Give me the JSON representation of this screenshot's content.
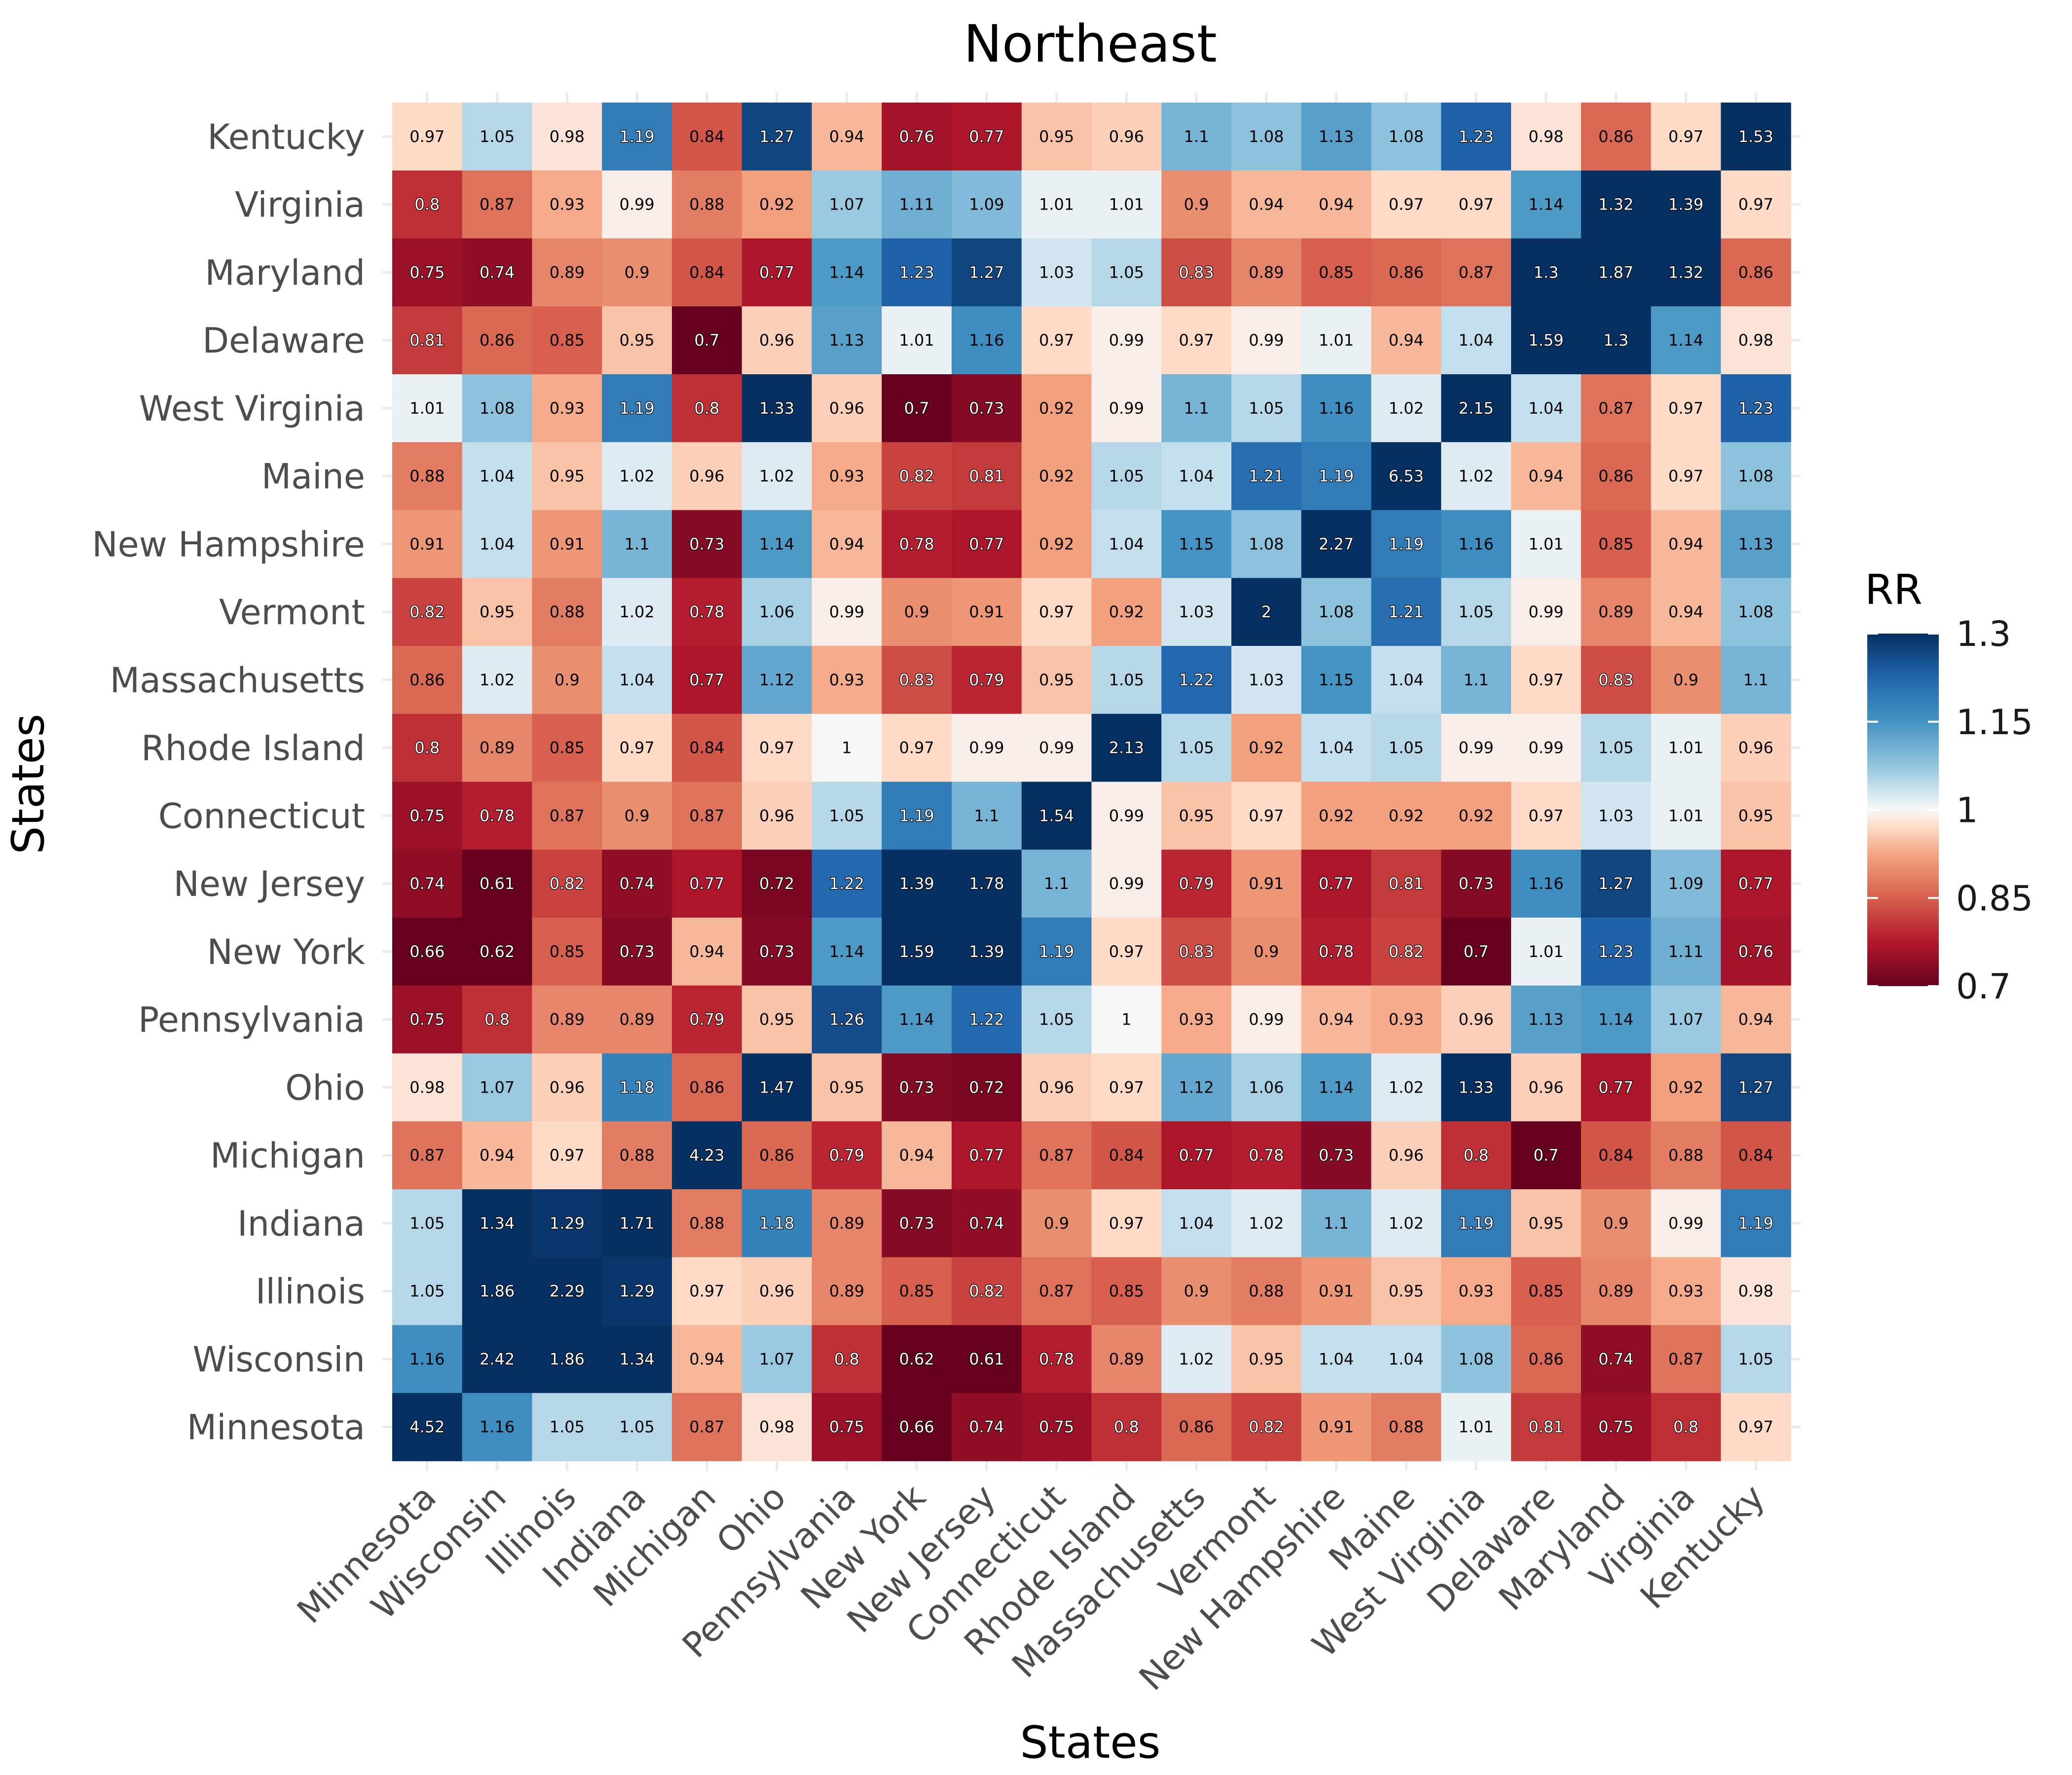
{
  "chart_data": {
    "type": "heatmap",
    "title": "Northeast",
    "xlabel": "States",
    "ylabel": "States",
    "x_categories": [
      "Minnesota",
      "Wisconsin",
      "Illinois",
      "Indiana",
      "Michigan",
      "Ohio",
      "Pennsylvania",
      "New York",
      "New Jersey",
      "Connecticut",
      "Rhode Island",
      "Massachusetts",
      "Vermont",
      "New Hampshire",
      "Maine",
      "West Virginia",
      "Delaware",
      "Maryland",
      "Virginia",
      "Kentucky"
    ],
    "y_categories": [
      "Kentucky",
      "Virginia",
      "Maryland",
      "Delaware",
      "West Virginia",
      "Maine",
      "New Hampshire",
      "Vermont",
      "Massachusetts",
      "Rhode Island",
      "Connecticut",
      "New Jersey",
      "New York",
      "Pennsylvania",
      "Ohio",
      "Michigan",
      "Indiana",
      "Illinois",
      "Wisconsin",
      "Minnesota"
    ],
    "values": [
      [
        0.97,
        1.05,
        0.98,
        1.19,
        0.84,
        1.27,
        0.94,
        0.76,
        0.77,
        0.95,
        0.96,
        1.1,
        1.08,
        1.13,
        1.08,
        1.23,
        0.98,
        0.86,
        0.97,
        1.53
      ],
      [
        0.8,
        0.87,
        0.93,
        0.99,
        0.88,
        0.92,
        1.07,
        1.11,
        1.09,
        1.01,
        1.01,
        0.9,
        0.94,
        0.94,
        0.97,
        0.97,
        1.14,
        1.32,
        1.39,
        0.97
      ],
      [
        0.75,
        0.74,
        0.89,
        0.9,
        0.84,
        0.77,
        1.14,
        1.23,
        1.27,
        1.03,
        1.05,
        0.83,
        0.89,
        0.85,
        0.86,
        0.87,
        1.3,
        1.87,
        1.32,
        0.86
      ],
      [
        0.81,
        0.86,
        0.85,
        0.95,
        0.7,
        0.96,
        1.13,
        1.01,
        1.16,
        0.97,
        0.99,
        0.97,
        0.99,
        1.01,
        0.94,
        1.04,
        1.59,
        1.3,
        1.14,
        0.98
      ],
      [
        1.01,
        1.08,
        0.93,
        1.19,
        0.8,
        1.33,
        0.96,
        0.7,
        0.73,
        0.92,
        0.99,
        1.1,
        1.05,
        1.16,
        1.02,
        2.15,
        1.04,
        0.87,
        0.97,
        1.23
      ],
      [
        0.88,
        1.04,
        0.95,
        1.02,
        0.96,
        1.02,
        0.93,
        0.82,
        0.81,
        0.92,
        1.05,
        1.04,
        1.21,
        1.19,
        6.53,
        1.02,
        0.94,
        0.86,
        0.97,
        1.08
      ],
      [
        0.91,
        1.04,
        0.91,
        1.1,
        0.73,
        1.14,
        0.94,
        0.78,
        0.77,
        0.92,
        1.04,
        1.15,
        1.08,
        2.27,
        1.19,
        1.16,
        1.01,
        0.85,
        0.94,
        1.13
      ],
      [
        0.82,
        0.95,
        0.88,
        1.02,
        0.78,
        1.06,
        0.99,
        0.9,
        0.91,
        0.97,
        0.92,
        1.03,
        2,
        1.08,
        1.21,
        1.05,
        0.99,
        0.89,
        0.94,
        1.08
      ],
      [
        0.86,
        1.02,
        0.9,
        1.04,
        0.77,
        1.12,
        0.93,
        0.83,
        0.79,
        0.95,
        1.05,
        1.22,
        1.03,
        1.15,
        1.04,
        1.1,
        0.97,
        0.83,
        0.9,
        1.1
      ],
      [
        0.8,
        0.89,
        0.85,
        0.97,
        0.84,
        0.97,
        1,
        0.97,
        0.99,
        0.99,
        2.13,
        1.05,
        0.92,
        1.04,
        1.05,
        0.99,
        0.99,
        1.05,
        1.01,
        0.96
      ],
      [
        0.75,
        0.78,
        0.87,
        0.9,
        0.87,
        0.96,
        1.05,
        1.19,
        1.1,
        1.54,
        0.99,
        0.95,
        0.97,
        0.92,
        0.92,
        0.92,
        0.97,
        1.03,
        1.01,
        0.95
      ],
      [
        0.74,
        0.61,
        0.82,
        0.74,
        0.77,
        0.72,
        1.22,
        1.39,
        1.78,
        1.1,
        0.99,
        0.79,
        0.91,
        0.77,
        0.81,
        0.73,
        1.16,
        1.27,
        1.09,
        0.77
      ],
      [
        0.66,
        0.62,
        0.85,
        0.73,
        0.94,
        0.73,
        1.14,
        1.59,
        1.39,
        1.19,
        0.97,
        0.83,
        0.9,
        0.78,
        0.82,
        0.7,
        1.01,
        1.23,
        1.11,
        0.76
      ],
      [
        0.75,
        0.8,
        0.89,
        0.89,
        0.79,
        0.95,
        1.26,
        1.14,
        1.22,
        1.05,
        1,
        0.93,
        0.99,
        0.94,
        0.93,
        0.96,
        1.13,
        1.14,
        1.07,
        0.94
      ],
      [
        0.98,
        1.07,
        0.96,
        1.18,
        0.86,
        1.47,
        0.95,
        0.73,
        0.72,
        0.96,
        0.97,
        1.12,
        1.06,
        1.14,
        1.02,
        1.33,
        0.96,
        0.77,
        0.92,
        1.27
      ],
      [
        0.87,
        0.94,
        0.97,
        0.88,
        4.23,
        0.86,
        0.79,
        0.94,
        0.77,
        0.87,
        0.84,
        0.77,
        0.78,
        0.73,
        0.96,
        0.8,
        0.7,
        0.84,
        0.88,
        0.84
      ],
      [
        1.05,
        1.34,
        1.29,
        1.71,
        0.88,
        1.18,
        0.89,
        0.73,
        0.74,
        0.9,
        0.97,
        1.04,
        1.02,
        1.1,
        1.02,
        1.19,
        0.95,
        0.9,
        0.99,
        1.19
      ],
      [
        1.05,
        1.86,
        2.29,
        1.29,
        0.97,
        0.96,
        0.89,
        0.85,
        0.82,
        0.87,
        0.85,
        0.9,
        0.88,
        0.91,
        0.95,
        0.93,
        0.85,
        0.89,
        0.93,
        0.98
      ],
      [
        1.16,
        2.42,
        1.86,
        1.34,
        0.94,
        1.07,
        0.8,
        0.62,
        0.61,
        0.78,
        0.89,
        1.02,
        0.95,
        1.04,
        1.04,
        1.08,
        0.86,
        0.74,
        0.87,
        1.05
      ],
      [
        4.52,
        1.16,
        1.05,
        1.05,
        0.87,
        0.98,
        0.75,
        0.66,
        0.74,
        0.75,
        0.8,
        0.86,
        0.82,
        0.91,
        0.88,
        1.01,
        0.81,
        0.75,
        0.8,
        0.97
      ]
    ],
    "legend": {
      "title": "RR",
      "ticks": [
        1.3,
        1.15,
        1,
        0.85,
        0.7
      ],
      "tick_labels": [
        "1.3",
        "1.15",
        "1",
        "0.85",
        "0.7"
      ],
      "range": [
        0.7,
        1.3
      ],
      "placement": "right"
    },
    "colors": {
      "low": "#67001f",
      "mid": "#f7f7f7",
      "high": "#053061"
    },
    "grid": true
  }
}
